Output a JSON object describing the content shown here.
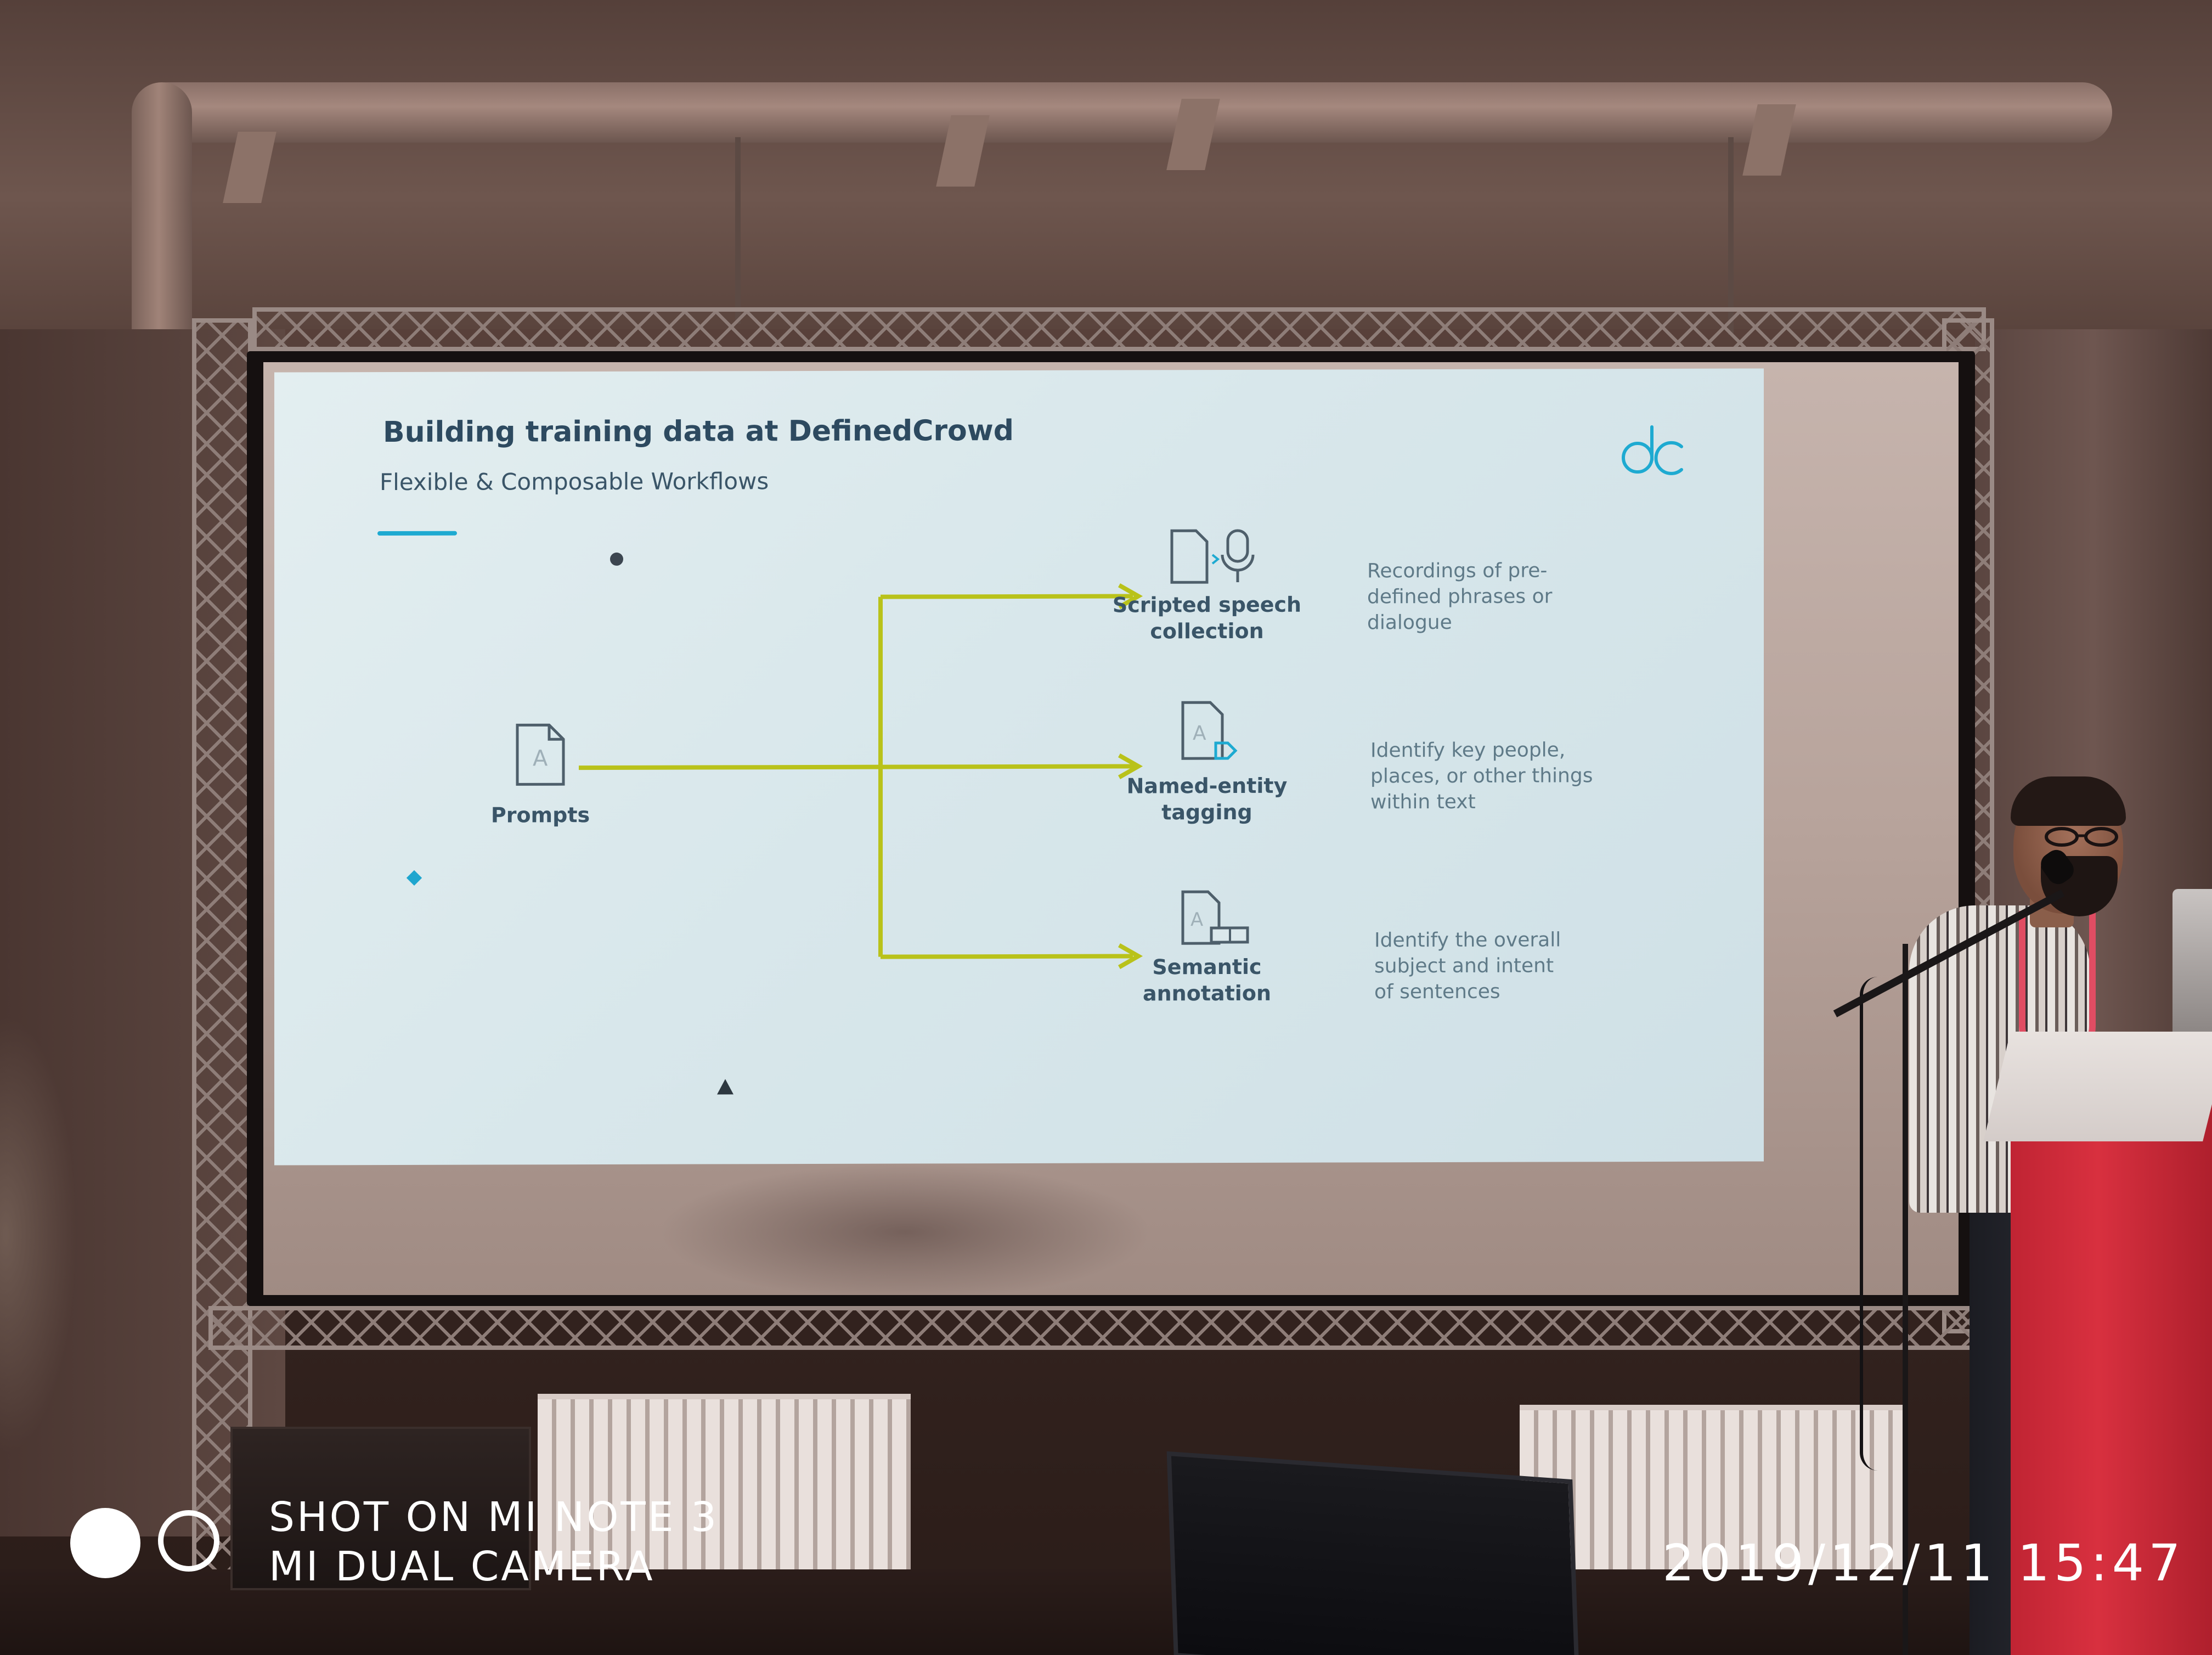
{
  "slide": {
    "title": "Building training data at DefinedCrowd",
    "subtitle": "Flexible & Composable Workflows",
    "logo_icon": "dc-logo-icon",
    "accent_color": "#1eaad1",
    "arrow_color": "#b9c21a",
    "source": {
      "label": "Prompts",
      "icon": "document-icon"
    },
    "workflows": [
      {
        "label": "Scripted speech\ncollection",
        "icon": "document-microphone-icon",
        "description": "Recordings of pre-\ndefined phrases or\ndialogue"
      },
      {
        "label": "Named-entity\ntagging",
        "icon": "document-tag-icon",
        "description": "Identify key people,\nplaces, or other things\nwithin text"
      },
      {
        "label": "Semantic\nannotation",
        "icon": "document-label-icon",
        "description": "Identify the overall\nsubject and intent\nof sentences"
      }
    ]
  },
  "watermark": {
    "line1": "SHOT ON MI NOTE 3",
    "line2": "MI DUAL CAMERA",
    "icon": "dual-camera-icon"
  },
  "timestamp": "2019/12/11  15:47"
}
